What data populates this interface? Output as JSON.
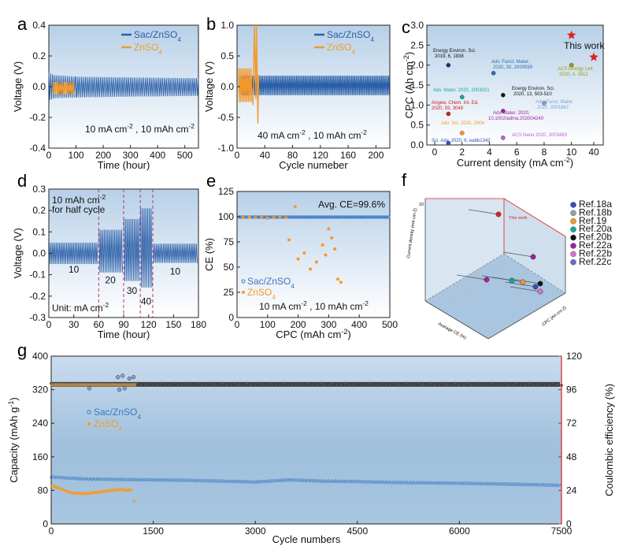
{
  "colors": {
    "blue": "#2a5fa8",
    "orange": "#f39a2b",
    "bg_top": "#c4d9ec",
    "bg_bottom": "#ffffff",
    "red": "#e02020",
    "grey": "#4d4d4d"
  },
  "chart_data": [
    {
      "id": "a",
      "type": "line",
      "letter": "a",
      "xlabel": "Time (hour)",
      "ylabel": "Voltage (V)",
      "xlim": [
        0,
        550
      ],
      "ylim": [
        -0.4,
        0.4
      ],
      "xticks": [
        "0",
        "100",
        "200",
        "300",
        "400",
        "500"
      ],
      "yticks": [
        "-0.4",
        "-0.2",
        "0.0",
        "0.2",
        "0.4"
      ],
      "legend": [
        "Sac/ZnSO4",
        "ZnSO4"
      ],
      "annotation": "10 mA cm-2 , 10 mAh cm-2",
      "series": [
        {
          "name": "Sac/ZnSO4",
          "envelope_x": [
            0,
            20,
            100,
            300,
            550
          ],
          "upper": [
            0.09,
            0.075,
            0.065,
            0.06,
            0.055
          ],
          "lower": [
            -0.09,
            -0.075,
            -0.07,
            -0.065,
            -0.06
          ]
        },
        {
          "name": "ZnSO4",
          "envelope_x": [
            15,
            95
          ],
          "upper": [
            0.03,
            0.03
          ],
          "lower": [
            -0.05,
            -0.05
          ]
        }
      ]
    },
    {
      "id": "b",
      "type": "line",
      "letter": "b",
      "xlabel": "Cycle numeber",
      "ylabel": "Voltage (V)",
      "xlim": [
        0,
        220
      ],
      "ylim": [
        -1.0,
        1.0
      ],
      "xticks": [
        "0",
        "40",
        "80",
        "120",
        "160",
        "200"
      ],
      "yticks": [
        "-1.0",
        "-0.5",
        "0.0",
        "0.5",
        "1.0"
      ],
      "legend": [
        "Sac/ZnSO4",
        "ZnSO4"
      ],
      "annotation": "40 mA cm-2 , 10 mAh cm-2",
      "series": [
        {
          "name": "Sac/ZnSO4",
          "upper": 0.18,
          "lower": -0.14
        },
        {
          "name": "ZnSO4",
          "x_end": 30,
          "spike_max": 1.0,
          "spike_min": -0.6
        }
      ]
    },
    {
      "id": "c",
      "type": "scatter",
      "letter": "c",
      "xlabel": "Current density (mA cm-2)",
      "ylabel": "CPC (Ah cm-2)",
      "xticks": [
        "0",
        "2",
        "4",
        "6",
        "8",
        "10",
        "40"
      ],
      "ylim": [
        0,
        3.0
      ],
      "yticks": [
        "0.0",
        "0.5",
        "1.0",
        "1.5",
        "2.0",
        "2.5",
        "3.0"
      ],
      "highlight_label": "This work",
      "points": [
        {
          "x": 1,
          "y": 2.0,
          "label": "Energy Environ. Sci. 2019, 6, 1838",
          "color": "#1a2a7a"
        },
        {
          "x": 4.3,
          "y": 1.8,
          "label": "Adv. Funct. Mater. 2020, 30, 2000599",
          "color": "#2b6fb0"
        },
        {
          "x": 10,
          "y": 2.0,
          "label": "ACS Energy Lett. 2020, 4, 2612",
          "color": "#9a9a10"
        },
        {
          "x": 2,
          "y": 1.2,
          "label": "Adv. Mater. 2020, 2003021",
          "color": "#14a8a0"
        },
        {
          "x": 5,
          "y": 1.25,
          "label": "Energy Environ. Sci. 2020, 13, 503-510",
          "color": "#111111"
        },
        {
          "x": 8,
          "y": 1.05,
          "label": "Adv. Funct. Mater. 2020, 2001867",
          "color": "#7aa0d0"
        },
        {
          "x": 1,
          "y": 0.78,
          "label": "Angew. Chem. Int. Ed. 2020, 59, 3048",
          "color": "#d02020"
        },
        {
          "x": 5,
          "y": 0.85,
          "label": "Adv. Mater. 2020, 10.1002/adma.202004240",
          "color": "#a020a0"
        },
        {
          "x": 2,
          "y": 0.3,
          "label": "Adv. Sci. 2020, 2004",
          "color": "#f39a2b"
        },
        {
          "x": 5,
          "y": 0.18,
          "label": "ACS Nano 2020, 2003483",
          "color": "#c060d0"
        },
        {
          "x": 1,
          "y": 0.05,
          "label": "Sci. Adv. 2020, 6, eabb1342",
          "color": "#3050c0"
        },
        {
          "x": 10,
          "y": 2.75,
          "label": "This work",
          "color": "#e02020",
          "star": true
        },
        {
          "x": 40,
          "y": 2.2,
          "label": "This work",
          "color": "#e02020",
          "star": true
        }
      ],
      "annotation_labels": {
        "p1a": "Energy Environ. Sci.",
        "p1b": "2019, 6, 1838",
        "p2a": "Adv. Funct. Mater.",
        "p2b": "2020, 30, 2000599",
        "p3a": "ACS Energy Lett.",
        "p3b": "2020, 4, 2612",
        "p4": "Adv. Mater. 2020, 2003021",
        "p5a": "Energy Environ. Sci.",
        "p5b": "2020, 13, 503-510",
        "p6a": "Adv. Funct. Mater.",
        "p6b": "2020, 2001867",
        "p7a": "Angew. Chem. Int. Ed.",
        "p7b": "2020, 59, 3048",
        "p8a": "Adv. Mater. 2020,",
        "p8b": "10.1002/adma.202004240",
        "p9": "Adv. Sci. 2020, 2004",
        "p10": "ACS Nano 2020, 2003483",
        "p11": "Sci. Adv. 2020, 6, eabb1342"
      }
    },
    {
      "id": "d",
      "type": "line",
      "letter": "d",
      "xlabel": "Time (hour)",
      "ylabel": "Voltage (V)",
      "xlim": [
        0,
        180
      ],
      "ylim": [
        -0.3,
        0.3
      ],
      "xticks": [
        "0",
        "30",
        "60",
        "90",
        "120",
        "150",
        "180"
      ],
      "yticks": [
        "-0.3",
        "-0.2",
        "-0.1",
        "0.0",
        "0.1",
        "0.2",
        "0.3"
      ],
      "annotation_top": [
        "10 mAh cm-2",
        "for half cycle"
      ],
      "annotation_unit": "Unit: mA cm-2",
      "segments": [
        {
          "x0": 0,
          "x1": 60,
          "label": "10",
          "upper": 0.05,
          "lower": -0.05
        },
        {
          "x0": 60,
          "x1": 90,
          "label": "20",
          "upper": 0.11,
          "lower": -0.09
        },
        {
          "x0": 90,
          "x1": 110,
          "label": "30",
          "upper": 0.16,
          "lower": -0.13
        },
        {
          "x0": 110,
          "x1": 125,
          "label": "40",
          "upper": 0.21,
          "lower": -0.16
        },
        {
          "x0": 125,
          "x1": 180,
          "label": "10",
          "upper": 0.045,
          "lower": -0.045
        }
      ],
      "dashed_x": [
        60,
        90,
        110,
        125
      ]
    },
    {
      "id": "e",
      "type": "scatter",
      "letter": "e",
      "xlabel": "CPC (mAh cm-2)",
      "ylabel": "CE (%)",
      "xlim": [
        0,
        500
      ],
      "ylim": [
        0,
        125
      ],
      "xticks": [
        "0",
        "100",
        "200",
        "300",
        "400",
        "500"
      ],
      "yticks": [
        "0",
        "25",
        "50",
        "75",
        "100",
        "125"
      ],
      "legend": [
        "Sac/ZnSO4",
        "ZnSO4"
      ],
      "annotation": "10 mA cm-2 , 10 mAh cm-2",
      "avg_label": "Avg. CE=99.6%",
      "series": [
        {
          "name": "Sac/ZnSO4",
          "constant": 99.6
        },
        {
          "name": "ZnSO4",
          "x": [
            20,
            40,
            60,
            80,
            100,
            120,
            140,
            160,
            170,
            190,
            200,
            220,
            240,
            260,
            280,
            290,
            300,
            310,
            320,
            330,
            340
          ],
          "y": [
            99,
            99.5,
            99,
            100,
            98.5,
            99,
            100,
            99,
            77,
            110,
            58,
            64,
            48,
            55,
            72,
            62,
            88,
            79,
            68,
            38,
            35
          ]
        }
      ]
    },
    {
      "id": "f",
      "type": "scatter3d",
      "letter": "f",
      "axis_labels": [
        "Current density (mA cm-2)",
        "Average CE (%)",
        "CPC (Ah cm-2)"
      ],
      "z_tick_top": "10",
      "this_work": "This work",
      "legend": [
        {
          "name": "Ref.18a",
          "color": "#3050c0"
        },
        {
          "name": "Ref.18b",
          "color": "#9aa0a8"
        },
        {
          "name": "Ref.19",
          "color": "#f39a2b"
        },
        {
          "name": "Ref.20a",
          "color": "#14a8a0"
        },
        {
          "name": "Ref.20b",
          "color": "#111111"
        },
        {
          "name": "Ref.22a",
          "color": "#a020a0"
        },
        {
          "name": "Ref.22b",
          "color": "#e070d0"
        },
        {
          "name": "Ref.22c",
          "color": "#6a6ad0"
        }
      ]
    },
    {
      "id": "g",
      "type": "scatter",
      "letter": "g",
      "xlabel": "Cycle numbers",
      "ylabel": "Capacity (mAh g-1)",
      "y2label": "Coulombic efficiency (%)",
      "xlim": [
        0,
        7500
      ],
      "ylim": [
        0,
        400
      ],
      "y2lim": [
        0,
        120
      ],
      "xticks": [
        "0",
        "1500",
        "3000",
        "4500",
        "6000",
        "7500"
      ],
      "yticks": [
        "0",
        "80",
        "160",
        "240",
        "320",
        "400"
      ],
      "y2ticks": [
        "0",
        "24",
        "48",
        "72",
        "96",
        "120"
      ],
      "legend": [
        "Sac/ZnSO4",
        "ZnSO4"
      ],
      "series": [
        {
          "name": "Sac/ZnSO4 capacity",
          "x": [
            0,
            500,
            1000,
            1500,
            2000,
            3000,
            3500,
            4000,
            4500,
            5000,
            6000,
            7000,
            7500
          ],
          "y": [
            112,
            107,
            106,
            105,
            104,
            100,
            105,
            102,
            101,
            99,
            97,
            94,
            92
          ]
        },
        {
          "name": "ZnSO4 capacity",
          "x": [
            0,
            300,
            500,
            800,
            1000,
            1200
          ],
          "y": [
            92,
            74,
            72,
            78,
            82,
            80
          ]
        },
        {
          "name": "Sac/ZnSO4 CE",
          "constant": 99.8
        },
        {
          "name": "ZnSO4 CE",
          "x_end": 1250,
          "value": 99.5
        }
      ]
    }
  ]
}
